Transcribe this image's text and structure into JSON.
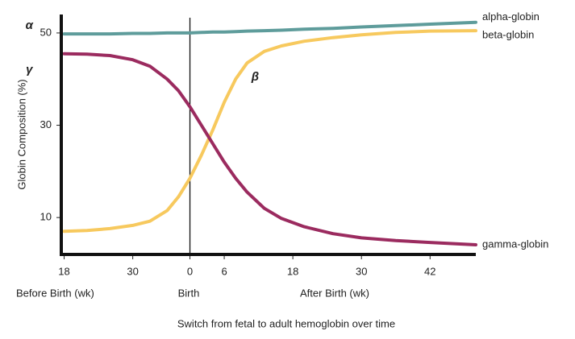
{
  "chart_data": {
    "type": "line",
    "title": "Switch from fetal to adult hemoglobin over time",
    "ylabel": "Globin Composition (%)",
    "xgroups": [
      "Before Birth (wk)",
      "Birth",
      "After Birth (wk)"
    ],
    "x": [
      -22,
      -18,
      -14,
      -10,
      -7,
      -4,
      -2,
      0,
      2,
      4,
      6,
      8,
      10,
      13,
      16,
      20,
      25,
      30,
      36,
      42,
      50
    ],
    "series": [
      {
        "name": "alpha-globin",
        "symbol": "α",
        "color": "#5e9c9b",
        "values": [
          49.8,
          49.8,
          49.8,
          49.9,
          49.9,
          50,
          50,
          50,
          50.1,
          50.2,
          50.2,
          50.3,
          50.4,
          50.5,
          50.6,
          50.8,
          51,
          51.3,
          51.6,
          51.9,
          52.3
        ]
      },
      {
        "name": "beta-globin",
        "symbol": "β",
        "color": "#f7c95e",
        "values": [
          7,
          7.2,
          7.6,
          8.3,
          9.2,
          11.5,
          14.5,
          18.5,
          23.5,
          29,
          35,
          40,
          43.5,
          46,
          47.2,
          48.2,
          49,
          49.6,
          50.1,
          50.4,
          50.5
        ]
      },
      {
        "name": "gamma-globin",
        "symbol": "γ",
        "color": "#9b2b5f",
        "values": [
          45.5,
          45.4,
          45.1,
          44.2,
          42.8,
          40,
          37.5,
          34,
          30,
          26,
          22,
          18.5,
          15.5,
          12,
          9.8,
          8,
          6.5,
          5.6,
          5,
          4.6,
          4.1
        ]
      }
    ],
    "vline": 0,
    "xlim": [
      -22.5,
      50
    ],
    "xticks": [
      {
        "value": -22,
        "label": "18"
      },
      {
        "value": -10,
        "label": "30"
      },
      0,
      6,
      18,
      30,
      42
    ],
    "ylim": [
      2,
      54
    ],
    "yticks": [
      10,
      30,
      50
    ]
  }
}
